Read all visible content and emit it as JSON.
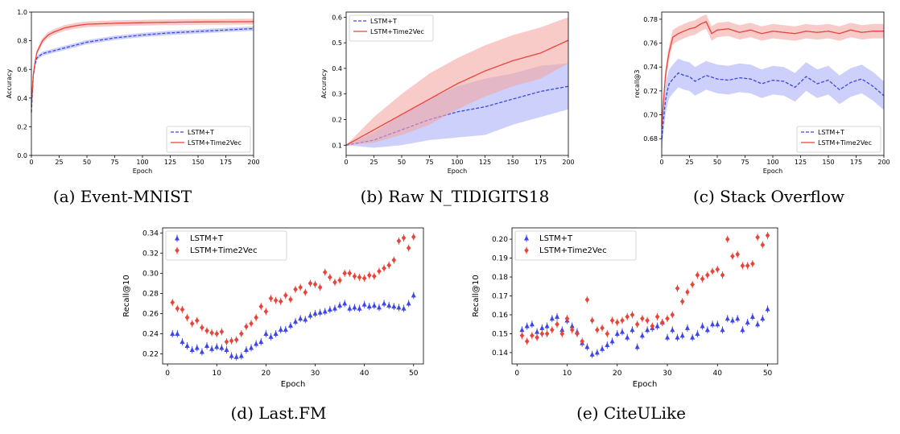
{
  "colors": {
    "red": "#e8443a",
    "blue": "#3d46e6",
    "red_band": "#f4a7a3",
    "blue_band": "#aab0f6"
  },
  "captions": [
    "(a) Event-MNIST",
    "(b) Raw N_TIDIGITS18",
    "(c) Stack Overflow",
    "(d) Last.FM",
    "(e) CiteULike"
  ],
  "chart_data": [
    {
      "type": "line",
      "caption": "(a) Event-MNIST",
      "xlabel": "Epoch",
      "ylabel": "Accuracy",
      "xlim": [
        0,
        200
      ],
      "ylim": [
        0.0,
        1.0
      ],
      "xticks": [
        0,
        25,
        50,
        75,
        100,
        125,
        150,
        175,
        200
      ],
      "yticks": [
        0.0,
        0.2,
        0.4,
        0.6,
        0.8,
        1.0
      ],
      "legend": "lower-right",
      "series": [
        {
          "name": "LSTM+T",
          "style": "dashed",
          "color": "blue",
          "x": [
            0,
            2,
            5,
            10,
            15,
            20,
            30,
            40,
            50,
            75,
            100,
            125,
            150,
            175,
            200
          ],
          "y": [
            0.3,
            0.6,
            0.68,
            0.71,
            0.72,
            0.73,
            0.75,
            0.77,
            0.79,
            0.82,
            0.84,
            0.855,
            0.865,
            0.875,
            0.885
          ],
          "band": 0.015
        },
        {
          "name": "LSTM+Time2Vec",
          "style": "solid",
          "color": "red",
          "x": [
            0,
            2,
            5,
            10,
            15,
            20,
            30,
            40,
            50,
            75,
            100,
            125,
            150,
            175,
            200
          ],
          "y": [
            0.35,
            0.6,
            0.72,
            0.8,
            0.84,
            0.86,
            0.89,
            0.905,
            0.915,
            0.922,
            0.926,
            0.929,
            0.931,
            0.932,
            0.933
          ],
          "band": 0.02
        }
      ]
    },
    {
      "type": "line",
      "caption": "(b) Raw N_TIDIGITS18",
      "xlabel": "Epoch",
      "ylabel": "Accuracy",
      "xlim": [
        0,
        200
      ],
      "ylim": [
        0.06,
        0.62
      ],
      "xticks": [
        0,
        25,
        50,
        75,
        100,
        125,
        150,
        175,
        200
      ],
      "yticks": [
        0.1,
        0.2,
        0.3,
        0.4,
        0.5,
        0.6
      ],
      "legend": "upper-left",
      "series": [
        {
          "name": "LSTM+T",
          "style": "dashed",
          "color": "blue",
          "x": [
            0,
            25,
            50,
            75,
            100,
            125,
            150,
            175,
            200
          ],
          "y": [
            0.1,
            0.12,
            0.16,
            0.2,
            0.23,
            0.25,
            0.28,
            0.31,
            0.33
          ],
          "band": [
            0.0,
            0.03,
            0.06,
            0.08,
            0.1,
            0.11,
            0.1,
            0.1,
            0.09
          ]
        },
        {
          "name": "LSTM+Time2Vec",
          "style": "solid",
          "color": "red",
          "x": [
            0,
            25,
            50,
            75,
            100,
            125,
            150,
            175,
            200
          ],
          "y": [
            0.1,
            0.16,
            0.22,
            0.28,
            0.34,
            0.39,
            0.43,
            0.46,
            0.51
          ],
          "band": [
            0.0,
            0.05,
            0.08,
            0.1,
            0.1,
            0.1,
            0.1,
            0.1,
            0.09
          ]
        }
      ]
    },
    {
      "type": "line",
      "caption": "(c) Stack Overflow",
      "xlabel": "Epoch",
      "ylabel": "recall@3",
      "xlim": [
        0,
        200
      ],
      "ylim": [
        0.666,
        0.786
      ],
      "xticks": [
        0,
        25,
        50,
        75,
        100,
        125,
        150,
        175,
        200
      ],
      "yticks": [
        0.68,
        0.7,
        0.72,
        0.74,
        0.76,
        0.78
      ],
      "legend": "lower-right",
      "series": [
        {
          "name": "LSTM+T",
          "style": "dashed",
          "color": "blue",
          "x": [
            0,
            3,
            6,
            10,
            15,
            20,
            25,
            30,
            40,
            50,
            60,
            70,
            80,
            90,
            100,
            110,
            120,
            130,
            140,
            150,
            160,
            170,
            180,
            190,
            200
          ],
          "y": [
            0.68,
            0.71,
            0.725,
            0.73,
            0.735,
            0.733,
            0.732,
            0.728,
            0.733,
            0.73,
            0.729,
            0.731,
            0.73,
            0.726,
            0.729,
            0.728,
            0.723,
            0.732,
            0.726,
            0.729,
            0.721,
            0.727,
            0.73,
            0.724,
            0.716
          ],
          "band": 0.012
        },
        {
          "name": "LSTM+Time2Vec",
          "style": "solid",
          "color": "red",
          "x": [
            0,
            3,
            6,
            10,
            15,
            20,
            25,
            30,
            35,
            40,
            45,
            50,
            60,
            70,
            80,
            90,
            100,
            110,
            120,
            130,
            140,
            150,
            160,
            170,
            180,
            190,
            200
          ],
          "y": [
            0.69,
            0.73,
            0.75,
            0.765,
            0.768,
            0.77,
            0.772,
            0.773,
            0.776,
            0.778,
            0.768,
            0.771,
            0.772,
            0.769,
            0.771,
            0.768,
            0.77,
            0.769,
            0.768,
            0.77,
            0.769,
            0.77,
            0.768,
            0.771,
            0.769,
            0.77,
            0.77
          ],
          "band": 0.006
        }
      ]
    },
    {
      "type": "scatter",
      "caption": "(d) Last.FM",
      "xlabel": "Epoch",
      "ylabel": "Recall@10",
      "xlim": [
        -1,
        52
      ],
      "ylim": [
        0.21,
        0.345
      ],
      "xticks": [
        0,
        10,
        20,
        30,
        40,
        50
      ],
      "yticks": [
        0.22,
        0.24,
        0.26,
        0.28,
        0.3,
        0.32,
        0.34
      ],
      "legend": "upper-left",
      "series": [
        {
          "name": "LSTM+T",
          "marker": "triangle",
          "color": "blue",
          "x": [
            1,
            2,
            3,
            4,
            5,
            6,
            7,
            8,
            9,
            10,
            11,
            12,
            13,
            14,
            15,
            16,
            17,
            18,
            19,
            20,
            21,
            22,
            23,
            24,
            25,
            26,
            27,
            28,
            29,
            30,
            31,
            32,
            33,
            34,
            35,
            36,
            37,
            38,
            39,
            40,
            41,
            42,
            43,
            44,
            45,
            46,
            47,
            48,
            49,
            50
          ],
          "y": [
            0.24,
            0.24,
            0.232,
            0.228,
            0.224,
            0.226,
            0.222,
            0.228,
            0.225,
            0.227,
            0.226,
            0.224,
            0.218,
            0.217,
            0.218,
            0.224,
            0.226,
            0.23,
            0.232,
            0.24,
            0.237,
            0.24,
            0.244,
            0.244,
            0.248,
            0.252,
            0.255,
            0.254,
            0.258,
            0.26,
            0.261,
            0.262,
            0.264,
            0.265,
            0.268,
            0.27,
            0.265,
            0.266,
            0.265,
            0.269,
            0.267,
            0.268,
            0.266,
            0.27,
            0.268,
            0.267,
            0.266,
            0.265,
            0.27,
            0.278
          ]
        },
        {
          "name": "LSTM+Time2Vec",
          "marker": "diamond",
          "color": "red",
          "x": [
            1,
            2,
            3,
            4,
            5,
            6,
            7,
            8,
            9,
            10,
            11,
            12,
            13,
            14,
            15,
            16,
            17,
            18,
            19,
            20,
            21,
            22,
            23,
            24,
            25,
            26,
            27,
            28,
            29,
            30,
            31,
            32,
            33,
            34,
            35,
            36,
            37,
            38,
            39,
            40,
            41,
            42,
            43,
            44,
            45,
            46,
            47,
            48,
            49,
            50
          ],
          "y": [
            0.271,
            0.265,
            0.264,
            0.256,
            0.25,
            0.253,
            0.246,
            0.243,
            0.241,
            0.24,
            0.242,
            0.232,
            0.233,
            0.234,
            0.24,
            0.247,
            0.25,
            0.256,
            0.267,
            0.262,
            0.275,
            0.273,
            0.272,
            0.278,
            0.274,
            0.284,
            0.286,
            0.281,
            0.29,
            0.289,
            0.286,
            0.301,
            0.296,
            0.291,
            0.293,
            0.3,
            0.3,
            0.297,
            0.296,
            0.295,
            0.298,
            0.297,
            0.302,
            0.305,
            0.308,
            0.313,
            0.332,
            0.335,
            0.325,
            0.336
          ]
        }
      ]
    },
    {
      "type": "scatter",
      "caption": "(e) CiteULike",
      "xlabel": "Epoch",
      "ylabel": "Recall@10",
      "xlim": [
        -1,
        52
      ],
      "ylim": [
        0.134,
        0.206
      ],
      "xticks": [
        0,
        10,
        20,
        30,
        40,
        50
      ],
      "yticks": [
        0.14,
        0.15,
        0.16,
        0.17,
        0.18,
        0.19,
        0.2
      ],
      "legend": "upper-left",
      "series": [
        {
          "name": "LSTM+T",
          "marker": "triangle",
          "color": "blue",
          "x": [
            1,
            2,
            3,
            4,
            5,
            6,
            7,
            8,
            9,
            10,
            11,
            12,
            13,
            14,
            15,
            16,
            17,
            18,
            19,
            20,
            21,
            22,
            23,
            24,
            25,
            26,
            27,
            28,
            29,
            30,
            31,
            32,
            33,
            34,
            35,
            36,
            37,
            38,
            39,
            40,
            41,
            42,
            43,
            44,
            45,
            46,
            47,
            48,
            49,
            50
          ],
          "y": [
            0.152,
            0.154,
            0.155,
            0.151,
            0.153,
            0.154,
            0.158,
            0.159,
            0.152,
            0.157,
            0.154,
            0.151,
            0.145,
            0.143,
            0.139,
            0.14,
            0.142,
            0.144,
            0.146,
            0.15,
            0.151,
            0.148,
            0.152,
            0.143,
            0.149,
            0.152,
            0.153,
            0.154,
            0.156,
            0.148,
            0.152,
            0.148,
            0.149,
            0.153,
            0.148,
            0.15,
            0.154,
            0.152,
            0.155,
            0.155,
            0.152,
            0.158,
            0.157,
            0.158,
            0.152,
            0.156,
            0.159,
            0.155,
            0.158,
            0.163
          ]
        },
        {
          "name": "LSTM+Time2Vec",
          "marker": "diamond",
          "color": "red",
          "x": [
            1,
            2,
            3,
            4,
            5,
            6,
            7,
            8,
            9,
            10,
            11,
            12,
            13,
            14,
            15,
            16,
            17,
            18,
            19,
            20,
            21,
            22,
            23,
            24,
            25,
            26,
            27,
            28,
            29,
            30,
            31,
            32,
            33,
            34,
            35,
            36,
            37,
            38,
            39,
            40,
            41,
            42,
            43,
            44,
            45,
            46,
            47,
            48,
            49,
            50
          ],
          "y": [
            0.149,
            0.146,
            0.149,
            0.148,
            0.15,
            0.15,
            0.152,
            0.155,
            0.15,
            0.158,
            0.152,
            0.15,
            0.146,
            0.168,
            0.157,
            0.152,
            0.153,
            0.15,
            0.157,
            0.156,
            0.157,
            0.159,
            0.16,
            0.155,
            0.158,
            0.157,
            0.154,
            0.159,
            0.156,
            0.158,
            0.16,
            0.174,
            0.167,
            0.172,
            0.176,
            0.181,
            0.179,
            0.181,
            0.183,
            0.184,
            0.181,
            0.2,
            0.191,
            0.192,
            0.186,
            0.186,
            0.187,
            0.201,
            0.197,
            0.202
          ]
        }
      ]
    }
  ]
}
